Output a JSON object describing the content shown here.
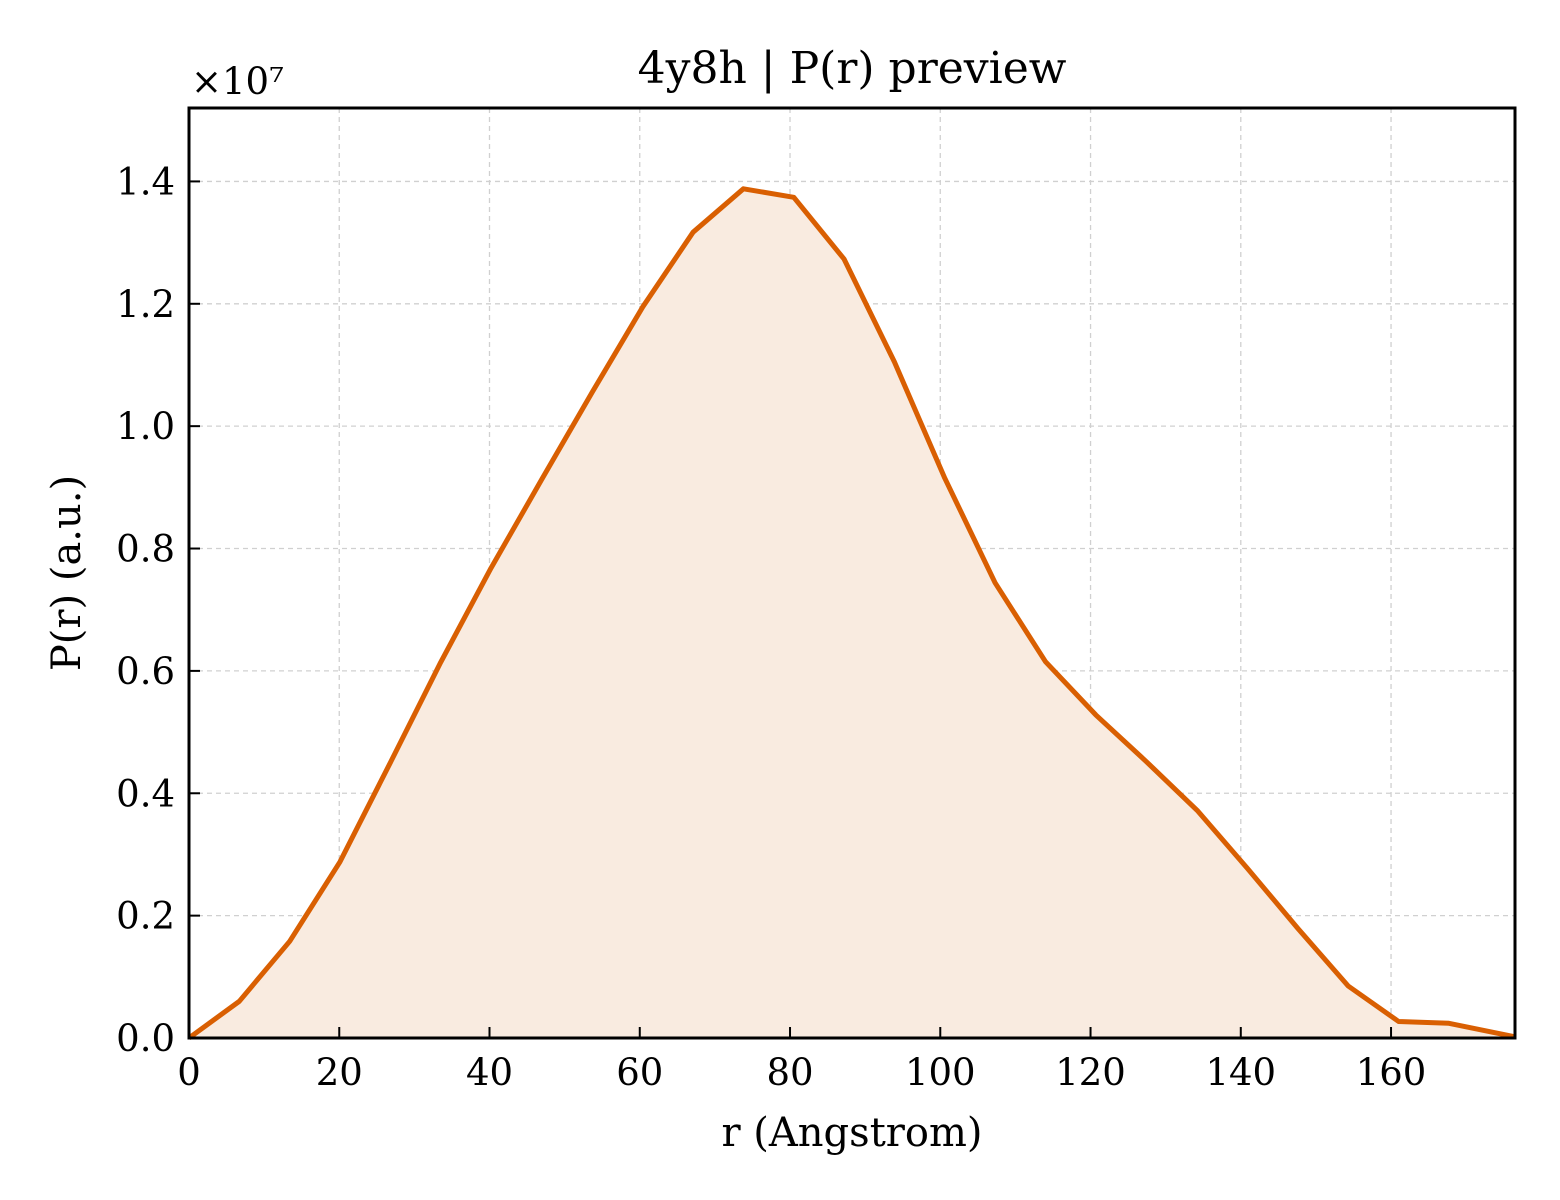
{
  "chart_data": {
    "type": "area",
    "title": "4y8h | P(r) preview",
    "xlabel": "r (Angstrom)",
    "ylabel": "P(r) (a.u.)",
    "y_offset_label": "×10⁷",
    "y_scale": 10000000,
    "xlim": [
      0,
      176.5
    ],
    "ylim": [
      0,
      15200000
    ],
    "xticks": [
      0,
      20,
      40,
      60,
      80,
      100,
      120,
      140,
      160
    ],
    "xtick_labels": [
      "0",
      "20",
      "40",
      "60",
      "80",
      "100",
      "120",
      "140",
      "160"
    ],
    "yticks": [
      0,
      2000000,
      4000000,
      6000000,
      8000000,
      10000000,
      12000000,
      14000000
    ],
    "ytick_labels": [
      "0.0",
      "0.2",
      "0.4",
      "0.6",
      "0.8",
      "1.0",
      "1.2",
      "1.4"
    ],
    "grid": true,
    "series": [
      {
        "color": "#d95f02",
        "fill_color": "#f9ebe0",
        "x": [
          0,
          6.7,
          13.4,
          20.1,
          26.8,
          33.5,
          40.2,
          47.0,
          53.7,
          60.4,
          67.1,
          73.8,
          80.5,
          87.2,
          93.9,
          100.6,
          107.3,
          114.0,
          120.7,
          127.4,
          134.2,
          140.9,
          147.6,
          154.3,
          161.0,
          167.7,
          176.5
        ],
        "y": [
          0,
          600000,
          1580000,
          2880000,
          4500000,
          6140000,
          7680000,
          9140000,
          10560000,
          11950000,
          13170000,
          13880000,
          13740000,
          12730000,
          11050000,
          9150000,
          7440000,
          6150000,
          5280000,
          4520000,
          3720000,
          2770000,
          1790000,
          850000,
          270000,
          240000,
          20000
        ]
      }
    ]
  }
}
